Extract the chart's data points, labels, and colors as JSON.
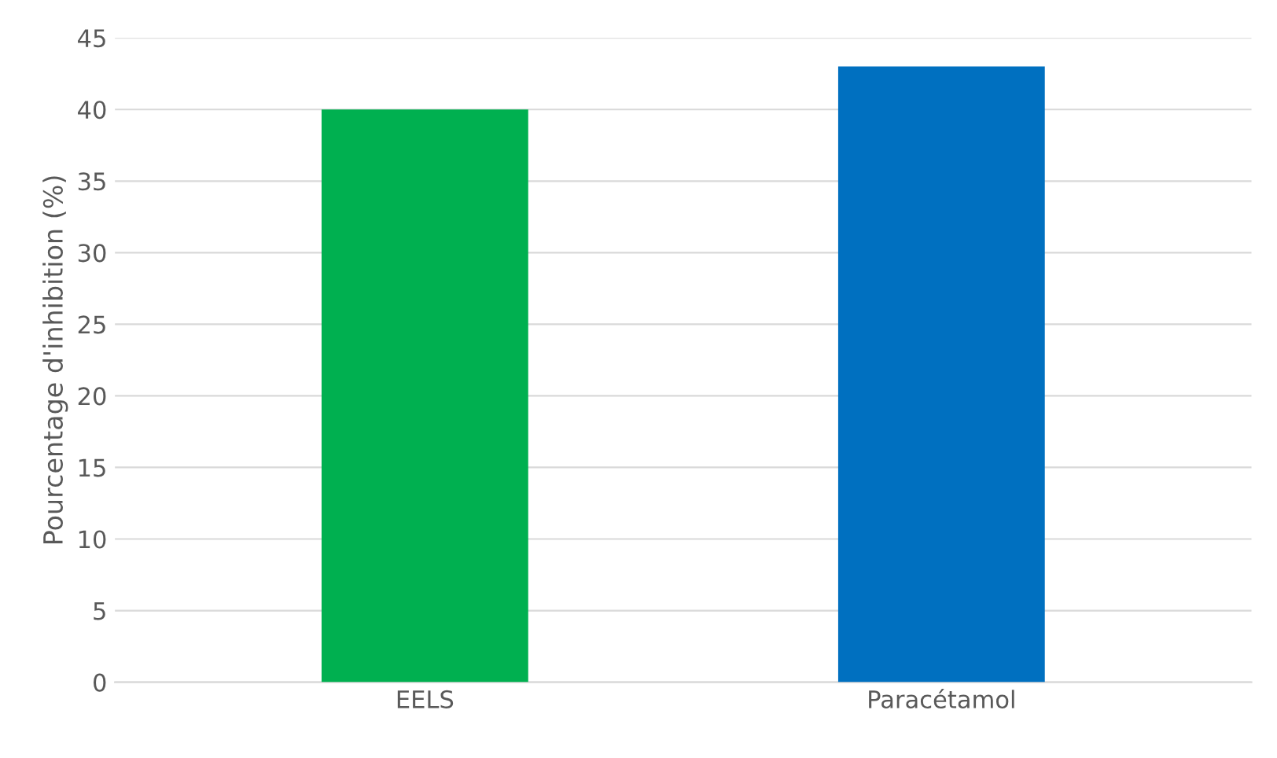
{
  "chart_data": {
    "type": "bar",
    "ylabel": "Pourcentage d'inhibition (%)",
    "categories": [
      "EELS",
      "Paracétamol"
    ],
    "values": [
      40,
      43
    ],
    "colors": [
      "#00b050",
      "#0070c0"
    ],
    "ylim": [
      0,
      45
    ],
    "yticks": [
      0,
      5,
      10,
      15,
      20,
      25,
      30,
      35,
      40,
      45
    ],
    "grid": "y"
  }
}
